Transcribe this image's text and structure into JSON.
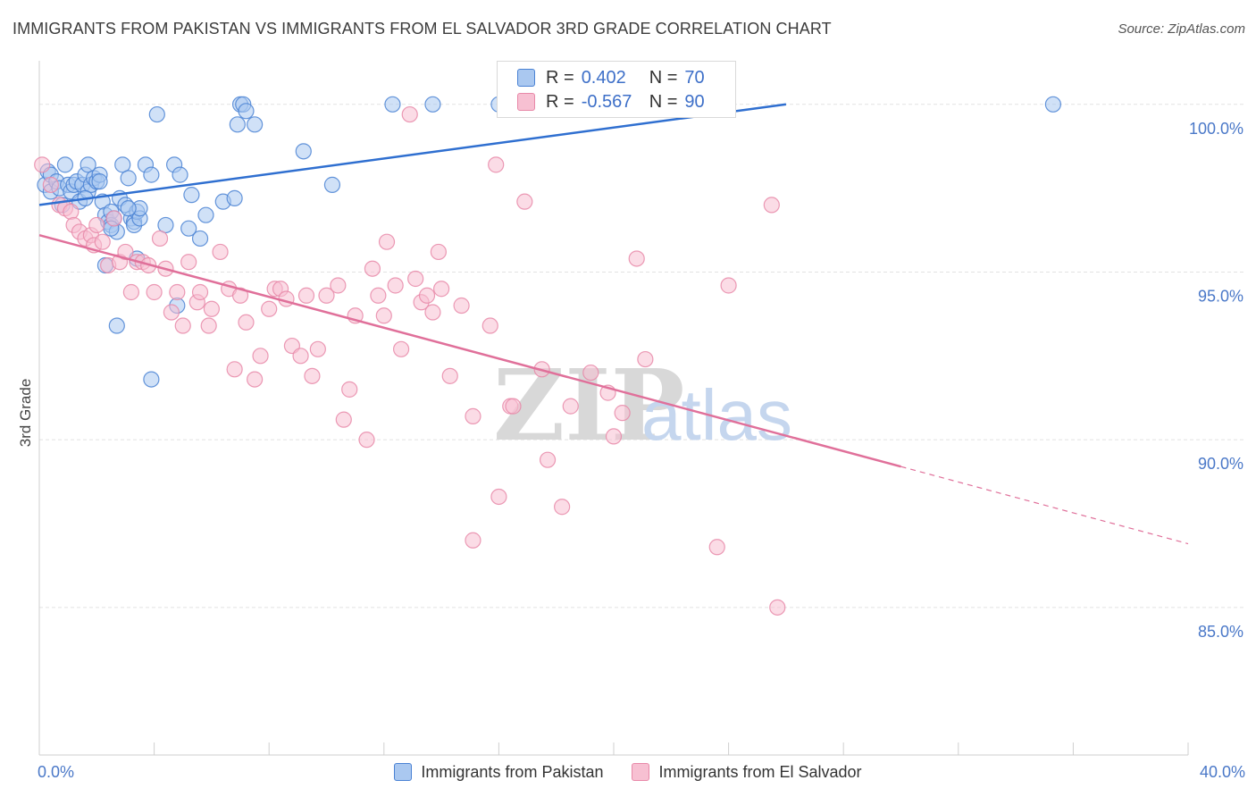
{
  "header": {
    "title": "IMMIGRANTS FROM PAKISTAN VS IMMIGRANTS FROM EL SALVADOR 3RD GRADE CORRELATION CHART",
    "source": "Source: ZipAtlas.com"
  },
  "watermark": {
    "zip": "ZIP",
    "atlas": "atlas"
  },
  "stats": {
    "pakistan": {
      "r_label": "R =",
      "r_value": "0.402",
      "n_label": "N =",
      "n_value": "70"
    },
    "el_salvador": {
      "r_label": "R =",
      "r_value": "-0.567",
      "n_label": "N =",
      "n_value": "90"
    }
  },
  "legend": {
    "pakistan": "Immigrants from Pakistan",
    "el_salvador": "Immigrants from El Salvador"
  },
  "colors": {
    "pakistan_fill": "#aac8f0",
    "pakistan_stroke": "#4a82d4",
    "pakistan_line": "#2f6fd0",
    "el_salvador_fill": "#f7c0d2",
    "el_salvador_stroke": "#e888a8",
    "el_salvador_line": "#e0709a",
    "grid": "#e2e2e2",
    "tick_text": "#4a78c8"
  },
  "chart_data": {
    "type": "scatter",
    "title": "IMMIGRANTS FROM PAKISTAN VS IMMIGRANTS FROM EL SALVADOR 3RD GRADE CORRELATION CHART",
    "xlabel": "",
    "ylabel": "3rd Grade",
    "xlim": [
      0,
      40
    ],
    "ylim": [
      80.6,
      101.3
    ],
    "x_tick_labels": [
      "0.0%",
      "40.0%"
    ],
    "y_ticks": [
      85,
      90,
      95,
      100
    ],
    "y_tick_labels": [
      "85.0%",
      "90.0%",
      "95.0%",
      "100.0%"
    ],
    "series": [
      {
        "name": "Immigrants from Pakistan",
        "r": 0.402,
        "n": 70,
        "trend": {
          "x": [
            0,
            26
          ],
          "y": [
            97.0,
            100.0
          ]
        },
        "points": [
          [
            0.2,
            97.6
          ],
          [
            0.3,
            98.0
          ],
          [
            0.4,
            97.4
          ],
          [
            0.4,
            97.9
          ],
          [
            0.6,
            97.7
          ],
          [
            0.7,
            97.5
          ],
          [
            0.8,
            97.0
          ],
          [
            0.9,
            98.2
          ],
          [
            1.0,
            97.6
          ],
          [
            1.1,
            97.4
          ],
          [
            1.2,
            97.6
          ],
          [
            1.3,
            97.7
          ],
          [
            1.4,
            97.1
          ],
          [
            1.5,
            97.6
          ],
          [
            1.6,
            97.9
          ],
          [
            1.7,
            98.2
          ],
          [
            1.7,
            97.4
          ],
          [
            1.8,
            97.6
          ],
          [
            1.9,
            97.8
          ],
          [
            2.0,
            97.7
          ],
          [
            2.1,
            97.9
          ],
          [
            2.1,
            97.7
          ],
          [
            2.2,
            97.1
          ],
          [
            2.3,
            96.7
          ],
          [
            2.4,
            96.5
          ],
          [
            2.5,
            96.8
          ],
          [
            2.5,
            96.4
          ],
          [
            2.6,
            96.6
          ],
          [
            2.7,
            96.2
          ],
          [
            2.8,
            97.2
          ],
          [
            2.9,
            98.2
          ],
          [
            3.0,
            97.0
          ],
          [
            3.1,
            97.8
          ],
          [
            3.2,
            96.6
          ],
          [
            3.3,
            96.5
          ],
          [
            3.3,
            96.4
          ],
          [
            3.4,
            96.8
          ],
          [
            3.5,
            96.6
          ],
          [
            3.7,
            98.2
          ],
          [
            3.9,
            97.9
          ],
          [
            4.1,
            99.7
          ],
          [
            4.4,
            96.4
          ],
          [
            4.7,
            98.2
          ],
          [
            4.9,
            97.9
          ],
          [
            5.3,
            97.3
          ],
          [
            5.6,
            96.0
          ],
          [
            5.8,
            96.7
          ],
          [
            6.4,
            97.1
          ],
          [
            6.8,
            97.2
          ],
          [
            6.9,
            99.4
          ],
          [
            7.0,
            100.0
          ],
          [
            7.1,
            100.0
          ],
          [
            7.2,
            99.8
          ],
          [
            7.5,
            99.4
          ],
          [
            9.2,
            98.6
          ],
          [
            10.2,
            97.6
          ],
          [
            12.3,
            100.0
          ],
          [
            13.7,
            100.0
          ],
          [
            16.0,
            100.0
          ],
          [
            35.3,
            100.0
          ],
          [
            2.3,
            95.2
          ],
          [
            2.7,
            93.4
          ],
          [
            3.4,
            95.4
          ],
          [
            4.8,
            94.0
          ],
          [
            3.9,
            91.8
          ],
          [
            2.5,
            96.3
          ],
          [
            3.5,
            96.9
          ],
          [
            3.1,
            96.9
          ],
          [
            5.2,
            96.3
          ],
          [
            1.6,
            97.2
          ]
        ]
      },
      {
        "name": "Immigrants from El Salvador",
        "r": -0.567,
        "n": 90,
        "trend": {
          "x": [
            0,
            30
          ],
          "y": [
            96.1,
            89.2
          ]
        },
        "trend_dashed": {
          "x": [
            30,
            40
          ],
          "y": [
            89.2,
            86.9
          ]
        },
        "points": [
          [
            0.1,
            98.2
          ],
          [
            0.4,
            97.6
          ],
          [
            0.7,
            97.0
          ],
          [
            0.9,
            96.9
          ],
          [
            1.1,
            96.8
          ],
          [
            1.2,
            96.4
          ],
          [
            1.4,
            96.2
          ],
          [
            1.6,
            96.0
          ],
          [
            1.8,
            96.1
          ],
          [
            1.9,
            95.8
          ],
          [
            2.0,
            96.4
          ],
          [
            2.2,
            95.9
          ],
          [
            2.4,
            95.2
          ],
          [
            2.6,
            96.6
          ],
          [
            2.8,
            95.3
          ],
          [
            3.0,
            95.6
          ],
          [
            3.2,
            94.4
          ],
          [
            3.4,
            95.3
          ],
          [
            3.6,
            95.3
          ],
          [
            3.8,
            95.2
          ],
          [
            4.0,
            94.4
          ],
          [
            4.2,
            96.0
          ],
          [
            4.4,
            95.1
          ],
          [
            4.6,
            93.8
          ],
          [
            4.8,
            94.4
          ],
          [
            5.0,
            93.4
          ],
          [
            5.2,
            95.3
          ],
          [
            5.5,
            94.1
          ],
          [
            5.6,
            94.4
          ],
          [
            5.9,
            93.4
          ],
          [
            6.0,
            93.9
          ],
          [
            6.3,
            95.6
          ],
          [
            6.6,
            94.5
          ],
          [
            6.8,
            92.1
          ],
          [
            7.0,
            94.3
          ],
          [
            7.2,
            93.5
          ],
          [
            7.5,
            91.8
          ],
          [
            7.7,
            92.5
          ],
          [
            8.0,
            93.9
          ],
          [
            8.2,
            94.5
          ],
          [
            8.4,
            94.5
          ],
          [
            8.6,
            94.2
          ],
          [
            8.8,
            92.8
          ],
          [
            9.1,
            92.5
          ],
          [
            9.3,
            94.3
          ],
          [
            9.5,
            91.9
          ],
          [
            9.7,
            92.7
          ],
          [
            10.0,
            94.3
          ],
          [
            10.4,
            94.6
          ],
          [
            10.6,
            90.6
          ],
          [
            10.8,
            91.5
          ],
          [
            11.0,
            93.7
          ],
          [
            11.4,
            90.0
          ],
          [
            11.6,
            95.1
          ],
          [
            11.8,
            94.3
          ],
          [
            12.0,
            93.7
          ],
          [
            12.1,
            95.9
          ],
          [
            12.4,
            94.6
          ],
          [
            12.6,
            92.7
          ],
          [
            12.9,
            99.7
          ],
          [
            13.1,
            94.8
          ],
          [
            13.3,
            94.1
          ],
          [
            13.5,
            94.3
          ],
          [
            13.7,
            93.8
          ],
          [
            13.9,
            95.6
          ],
          [
            14.0,
            94.5
          ],
          [
            14.7,
            94.0
          ],
          [
            14.3,
            91.9
          ],
          [
            15.1,
            90.7
          ],
          [
            15.7,
            93.4
          ],
          [
            15.9,
            98.2
          ],
          [
            16.0,
            88.3
          ],
          [
            16.4,
            91.0
          ],
          [
            16.5,
            91.0
          ],
          [
            16.9,
            97.1
          ],
          [
            17.5,
            92.1
          ],
          [
            17.7,
            89.4
          ],
          [
            18.2,
            88.0
          ],
          [
            18.5,
            91.0
          ],
          [
            19.2,
            92.0
          ],
          [
            19.8,
            91.4
          ],
          [
            20.0,
            90.1
          ],
          [
            20.3,
            90.8
          ],
          [
            20.8,
            95.4
          ],
          [
            21.1,
            92.4
          ],
          [
            23.6,
            86.8
          ],
          [
            24.0,
            94.6
          ],
          [
            25.7,
            85.0
          ],
          [
            25.5,
            97.0
          ],
          [
            15.1,
            87.0
          ]
        ]
      }
    ]
  }
}
